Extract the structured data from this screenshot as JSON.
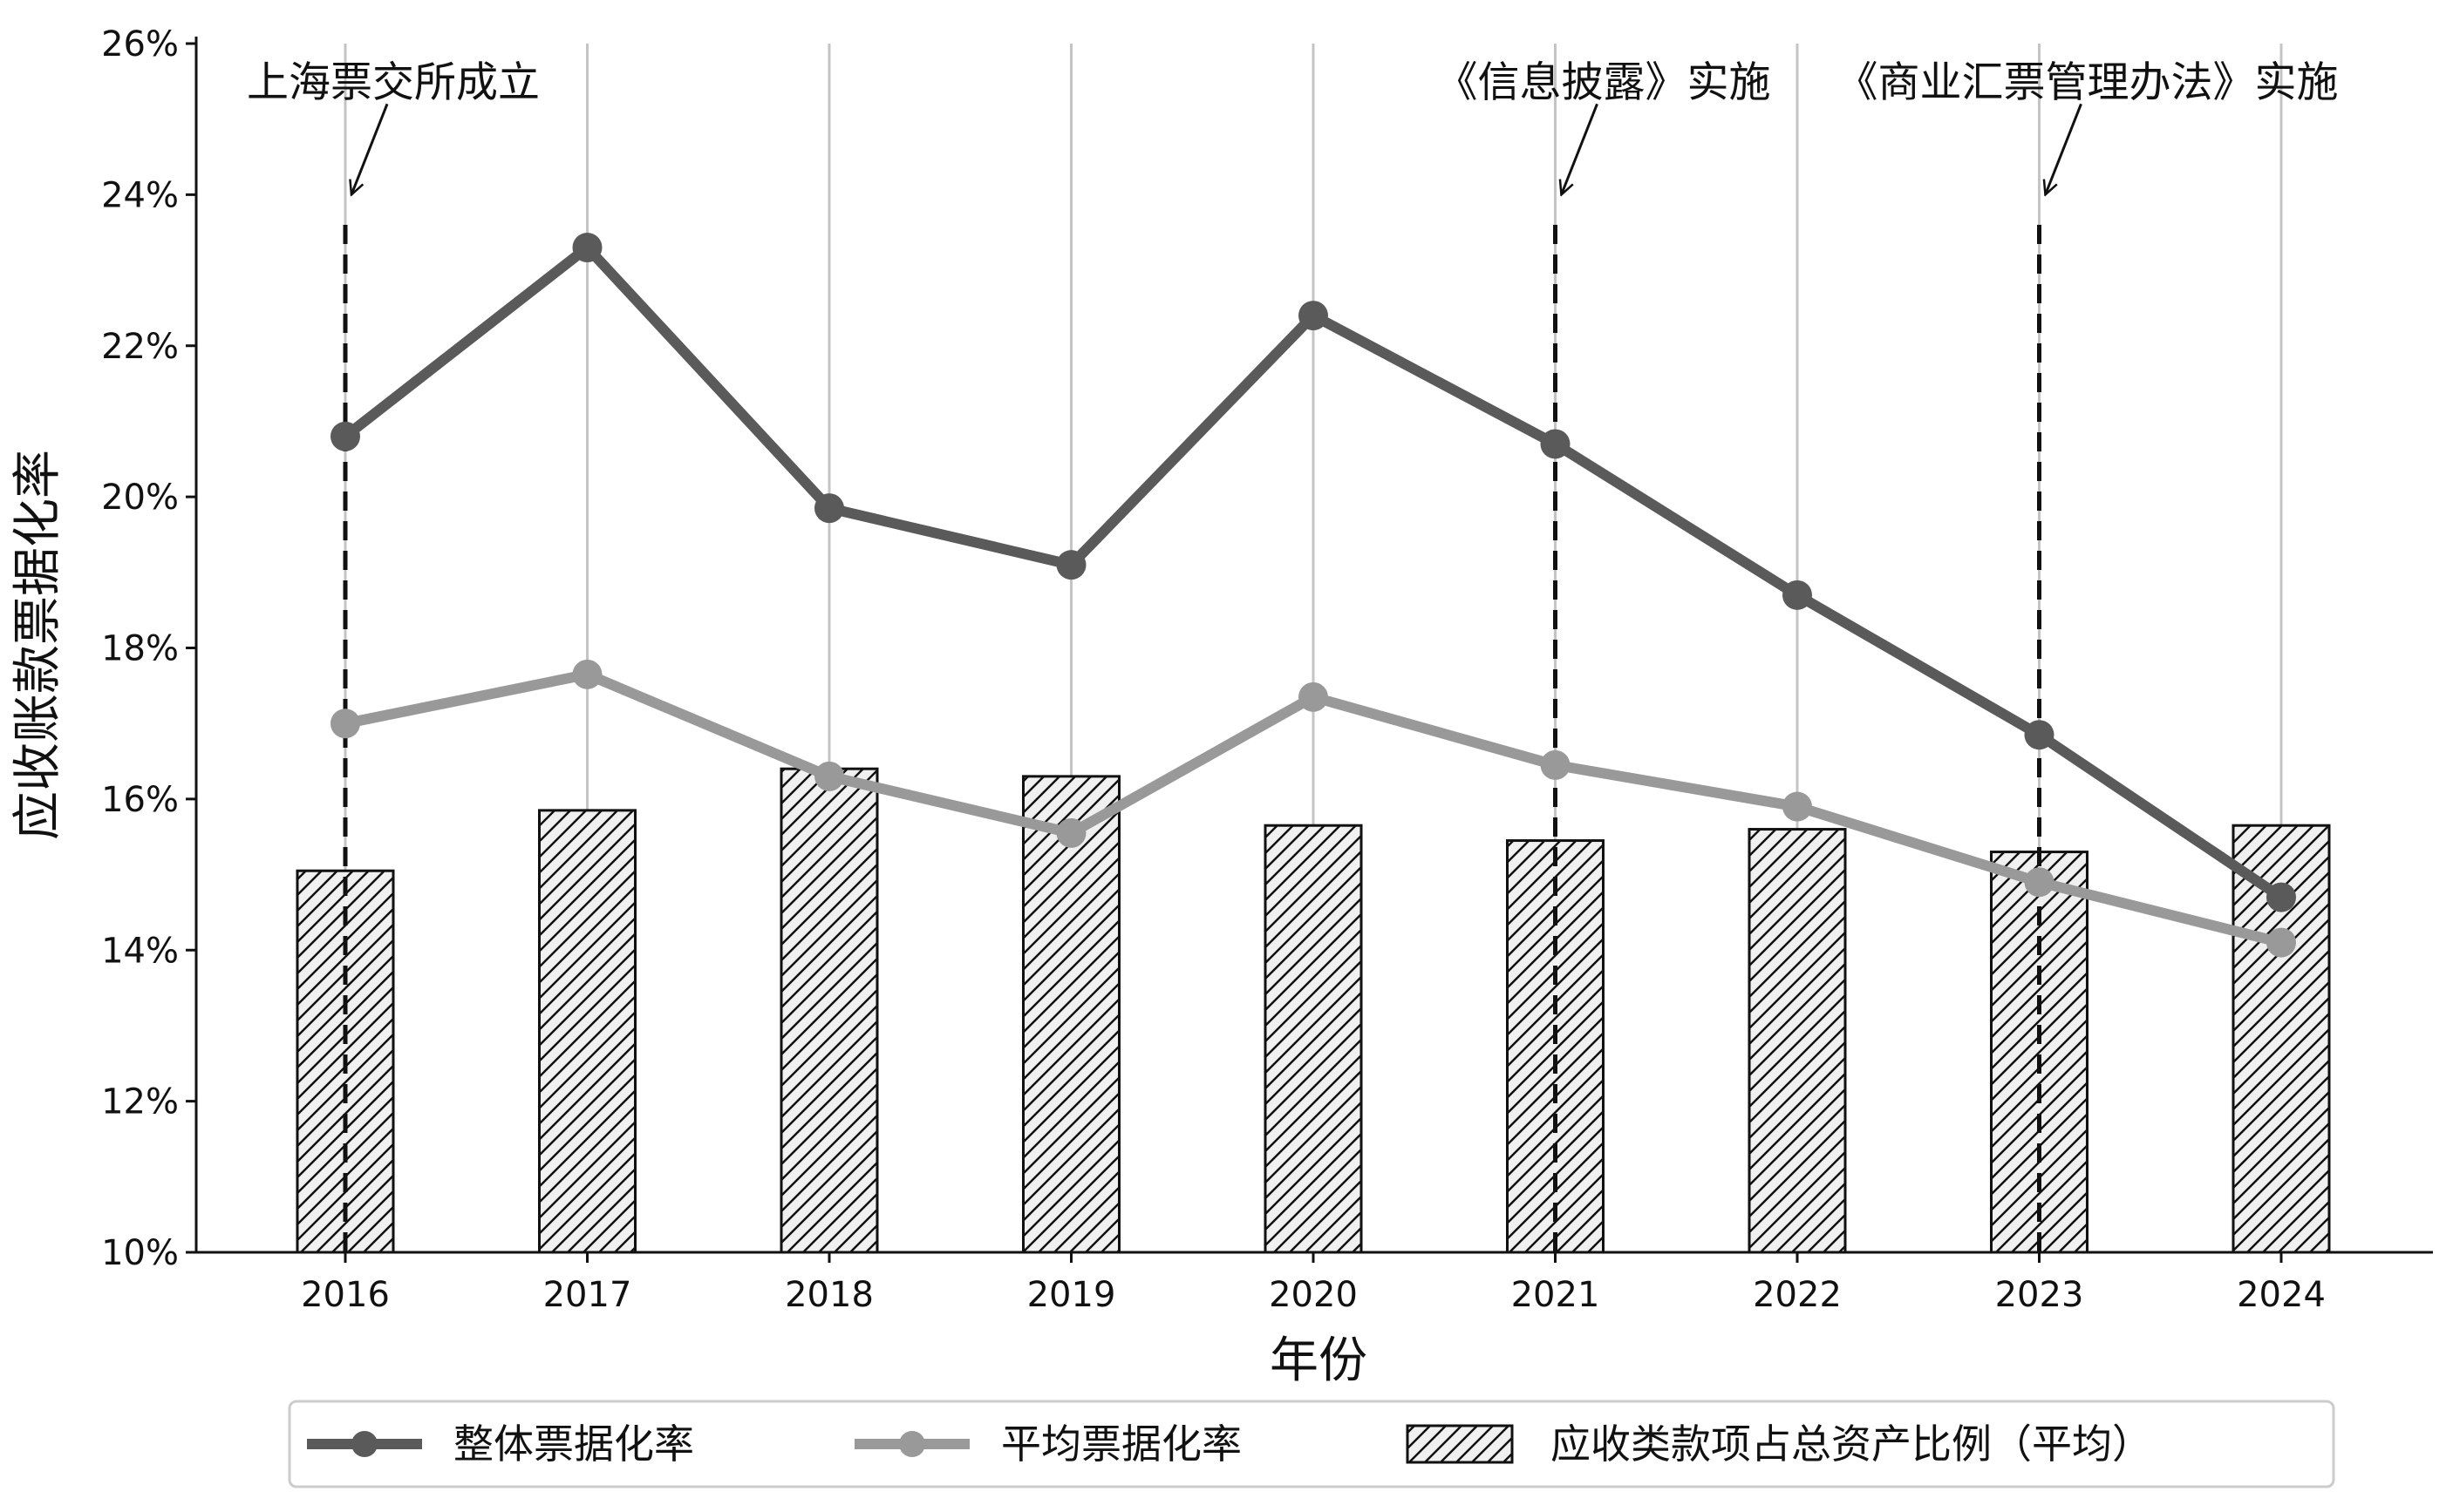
{
  "chart_data": {
    "type": "bar+line",
    "categories": [
      "2016",
      "2017",
      "2018",
      "2019",
      "2020",
      "2021",
      "2022",
      "2023",
      "2024"
    ],
    "series": [
      {
        "name": "整体票据化率",
        "type": "line",
        "color": "#5a5a5a",
        "values": [
          20.8,
          23.3,
          19.85,
          19.1,
          22.4,
          20.7,
          18.7,
          16.85,
          14.7
        ]
      },
      {
        "name": "平均票据化率",
        "type": "line",
        "color": "#999999",
        "values": [
          17.0,
          17.65,
          16.3,
          15.55,
          17.35,
          16.45,
          15.9,
          14.9,
          14.1
        ]
      },
      {
        "name": "应收类款项占总资产比例（平均）",
        "type": "bar",
        "pattern": "diagonal-hatch",
        "color": "#f0f0f0",
        "values": [
          15.05,
          15.85,
          16.4,
          16.3,
          15.65,
          15.45,
          15.6,
          15.3,
          15.65
        ]
      }
    ],
    "xlabel": "年份",
    "ylabel": "应收账款票据化率",
    "ylim": [
      10,
      26
    ],
    "yticks": [
      "10%",
      "12%",
      "14%",
      "16%",
      "18%",
      "20%",
      "22%",
      "24%",
      "26%"
    ],
    "grid": "vertical",
    "legend_position": "bottom",
    "annotations": [
      {
        "year": "2016",
        "text": "上海票交所成立"
      },
      {
        "year": "2021",
        "text": "《信息披露》实施"
      },
      {
        "year": "2023",
        "text": "《商业汇票管理办法》实施"
      }
    ]
  }
}
